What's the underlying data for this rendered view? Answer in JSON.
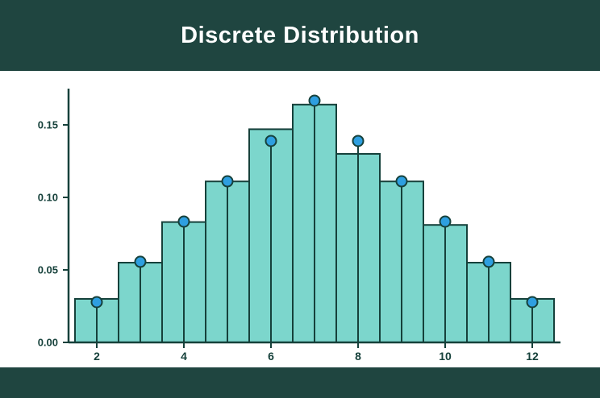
{
  "header": {
    "title": "Discrete Distribution"
  },
  "colors": {
    "band_bg": "#1f4540",
    "plot_bg": "#ffffff",
    "bar_fill": "#7cd6cc",
    "bar_stroke": "#16413b",
    "stem_stroke": "#16413b",
    "marker_fill": "#2e9fe0",
    "marker_stroke": "#16413b",
    "axis_color": "#16413b",
    "title_color": "#ffffff"
  },
  "chart_data": {
    "type": "bar",
    "title": "Discrete Distribution",
    "xlabel": "",
    "ylabel": "",
    "x": [
      2,
      3,
      4,
      5,
      6,
      7,
      8,
      9,
      10,
      11,
      12
    ],
    "series": [
      {
        "name": "empirical-bars",
        "type": "bar",
        "values": [
          0.03,
          0.055,
          0.083,
          0.111,
          0.147,
          0.164,
          0.13,
          0.111,
          0.081,
          0.055,
          0.03
        ]
      },
      {
        "name": "theoretical-pmf-stems",
        "type": "stem",
        "values": [
          0.0278,
          0.0556,
          0.0833,
          0.1111,
          0.1389,
          0.1667,
          0.1389,
          0.1111,
          0.0833,
          0.0556,
          0.0278
        ]
      }
    ],
    "bar_width": 1,
    "xticks": [
      2,
      4,
      6,
      8,
      10,
      12
    ],
    "yticks": [
      0.0,
      0.05,
      0.1,
      0.15
    ],
    "xlim": [
      1.5,
      12.5
    ],
    "ylim": [
      0,
      0.175
    ],
    "grid": false,
    "legend_position": "none"
  }
}
